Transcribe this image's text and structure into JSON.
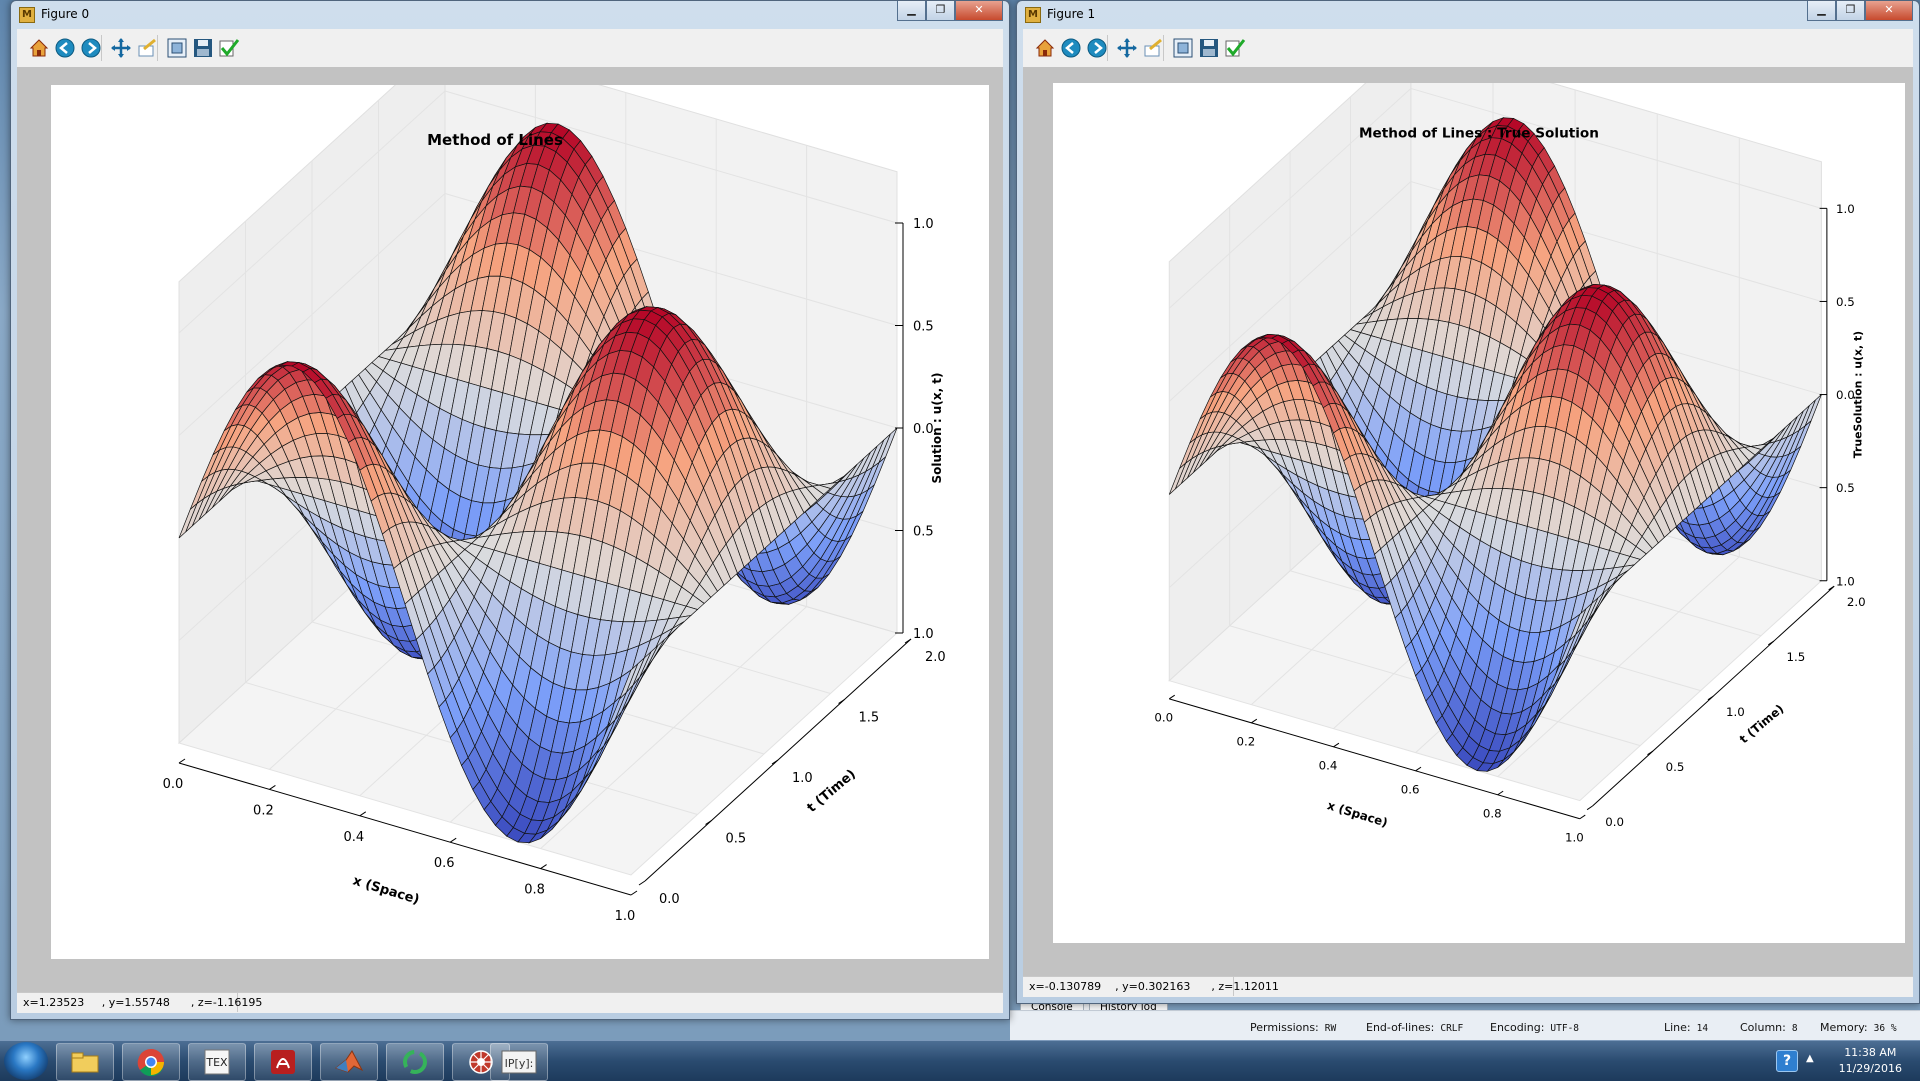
{
  "background": {
    "tabs": [
      "Console",
      "History log"
    ],
    "status": [
      {
        "label": "Permissions:",
        "value": "RW"
      },
      {
        "label": "End-of-lines:",
        "value": "CRLF"
      },
      {
        "label": "Encoding:",
        "value": "UTF-8"
      },
      {
        "label": "Line:",
        "value": "14"
      },
      {
        "label": "Column:",
        "value": "8"
      },
      {
        "label": "Memory:",
        "value": "36 %"
      }
    ]
  },
  "windows": [
    {
      "title": "Figure 0",
      "coords": "x=1.23523     , y=1.55748      , z=-1.16195",
      "toolbar": [
        "home-icon",
        "back-icon",
        "forward-icon",
        "pan-icon",
        "zoom-icon",
        "subplots-icon",
        "save-icon",
        "check-icon"
      ],
      "plot": {
        "title": "Method of Lines",
        "zlabel": "Solution : u(x, t)"
      }
    },
    {
      "title": "Figure 1",
      "coords": "x=-0.130789    , y=0.302163      , z=1.12011",
      "toolbar": [
        "home-icon",
        "back-icon",
        "forward-icon",
        "pan-icon",
        "zoom-icon",
        "subplots-icon",
        "save-icon",
        "check-icon"
      ],
      "plot": {
        "title": "Method of Lines  :  True Solution",
        "zlabel": "TrueSolution : u(x, t)"
      }
    }
  ],
  "chart_data": [
    {
      "type": "surface",
      "title": "Method of Lines",
      "xlabel": "x (Space)",
      "ylabel": "t (Time)",
      "zlabel": "Solution : u(x, t)",
      "x_ticks": [
        "0.0",
        "0.2",
        "0.4",
        "0.6",
        "0.8",
        "1.0"
      ],
      "t_ticks": [
        "0.0",
        "0.5",
        "1.0",
        "1.5",
        "2.0"
      ],
      "z_ticks": [
        "1.0",
        "0.5",
        "0.0",
        "0.5",
        "1.0"
      ],
      "xlim": [
        0,
        1
      ],
      "tlim": [
        0,
        2
      ],
      "zlim": [
        -1,
        1
      ],
      "colormap": "coolwarm",
      "surface": "u(x,t) = sin(2πx)·cos(πt)"
    },
    {
      "type": "surface",
      "title": "Method of Lines  :  True Solution",
      "xlabel": "x (Space)",
      "ylabel": "t (Time)",
      "zlabel": "TrueSolution : u(x, t)",
      "x_ticks": [
        "0.0",
        "0.2",
        "0.4",
        "0.6",
        "0.8",
        "1.0"
      ],
      "t_ticks": [
        "0.0",
        "0.5",
        "1.0",
        "1.5",
        "2.0"
      ],
      "z_ticks": [
        "1.0",
        "0.5",
        "0.0",
        "0.5",
        "1.0"
      ],
      "xlim": [
        0,
        1
      ],
      "tlim": [
        0,
        2
      ],
      "zlim": [
        -1,
        1
      ],
      "colormap": "coolwarm",
      "surface": "u(x,t) = sin(2πx)·cos(πt)"
    }
  ],
  "taskbar": {
    "apps": [
      "start-orb",
      "file-explorer-icon",
      "chrome-icon",
      "texmaker-icon",
      "acrobat-icon",
      "matlab-icon",
      "sync-icon",
      "spyder-icon",
      "ipython-icon"
    ],
    "time": "11:38 AM",
    "date": "11/29/2016"
  }
}
